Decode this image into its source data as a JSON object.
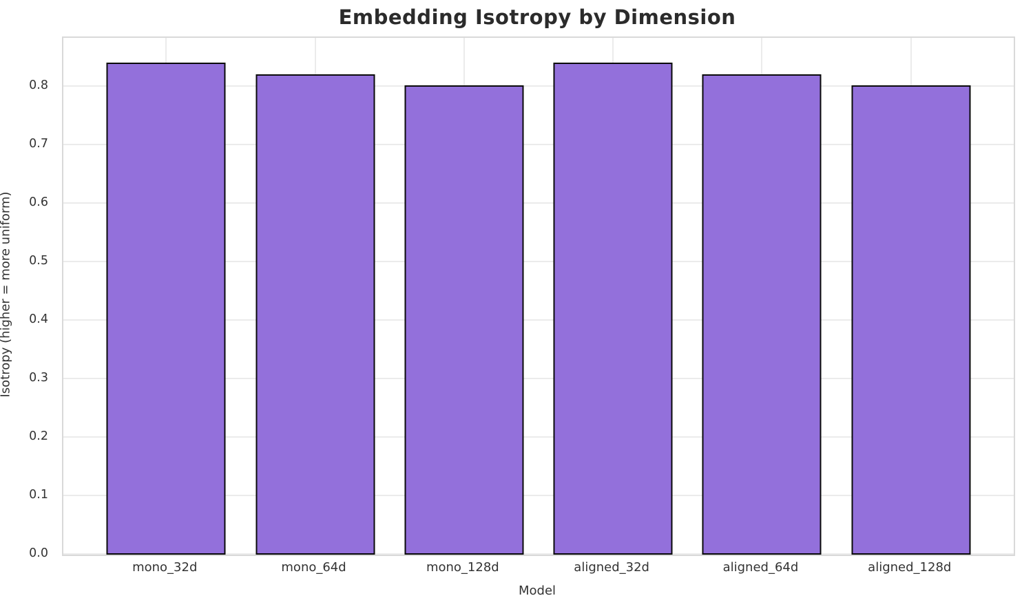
{
  "chart_data": {
    "type": "bar",
    "title": "Embedding Isotropy by Dimension",
    "xlabel": "Model",
    "ylabel": "Isotropy (higher = more uniform)",
    "categories": [
      "mono_32d",
      "mono_64d",
      "mono_128d",
      "aligned_32d",
      "aligned_64d",
      "aligned_128d"
    ],
    "values": [
      0.842,
      0.822,
      0.803,
      0.842,
      0.822,
      0.803
    ],
    "yticks": [
      "0.0",
      "0.1",
      "0.2",
      "0.3",
      "0.4",
      "0.5",
      "0.6",
      "0.7",
      "0.8"
    ],
    "ytick_values": [
      0.0,
      0.1,
      0.2,
      0.3,
      0.4,
      0.5,
      0.6,
      0.7,
      0.8
    ],
    "ylim": [
      0,
      0.884
    ],
    "grid": "both",
    "legend": "none",
    "layout": {
      "x_margin": 0.69,
      "x_span": 6.38,
      "bar_width_units": 0.8
    },
    "colors": {
      "bar_fill": "#9370DB",
      "bar_edge": "#0a0a0a",
      "grid": "#ebebeb",
      "spine": "#d9d9d9",
      "tick_text": "#333333",
      "title_text": "#2b2b2b"
    }
  }
}
